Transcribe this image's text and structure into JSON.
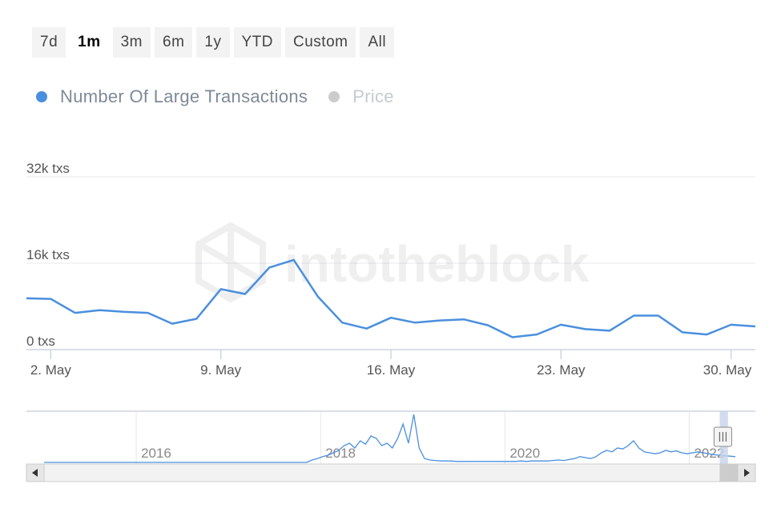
{
  "range_selector": {
    "buttons": [
      {
        "label": "7d",
        "active": false
      },
      {
        "label": "1m",
        "active": true
      },
      {
        "label": "3m",
        "active": false
      },
      {
        "label": "6m",
        "active": false
      },
      {
        "label": "1y",
        "active": false
      },
      {
        "label": "YTD",
        "active": false
      },
      {
        "label": "Custom",
        "active": false
      },
      {
        "label": "All",
        "active": false
      }
    ]
  },
  "legend": {
    "items": [
      {
        "label": "Number Of Large Transactions",
        "color": "#4a8fde",
        "text_color": "#7f8a97"
      },
      {
        "label": "Price",
        "color": "#cccccc",
        "text_color": "#c6cbd0"
      }
    ]
  },
  "watermark": "intotheblock",
  "colors": {
    "line": "#4a8fde",
    "grid": "#e9e9ef",
    "axis": "#cdd4e2"
  },
  "chart_data": {
    "type": "line",
    "series": [
      {
        "name": "Number Of Large Transactions",
        "x": [
          "2022-05-01",
          "2022-05-02",
          "2022-05-03",
          "2022-05-04",
          "2022-05-05",
          "2022-05-06",
          "2022-05-07",
          "2022-05-08",
          "2022-05-09",
          "2022-05-10",
          "2022-05-11",
          "2022-05-12",
          "2022-05-13",
          "2022-05-14",
          "2022-05-15",
          "2022-05-16",
          "2022-05-17",
          "2022-05-18",
          "2022-05-19",
          "2022-05-20",
          "2022-05-21",
          "2022-05-22",
          "2022-05-23",
          "2022-05-24",
          "2022-05-25",
          "2022-05-26",
          "2022-05-27",
          "2022-05-28",
          "2022-05-29",
          "2022-05-30",
          "2022-05-31"
        ],
        "values": [
          9500,
          9400,
          6800,
          7300,
          7000,
          6800,
          4800,
          5700,
          11200,
          10300,
          15200,
          16600,
          9800,
          5000,
          3900,
          5900,
          5000,
          5400,
          5600,
          4500,
          2300,
          2800,
          4600,
          3800,
          3500,
          6300,
          6300,
          3200,
          2800,
          4600,
          4300
        ]
      }
    ],
    "y_ticks": [
      {
        "value": 0,
        "label": "0 txs"
      },
      {
        "value": 16000,
        "label": "16k txs"
      },
      {
        "value": 32000,
        "label": "32k txs"
      }
    ],
    "ylim": [
      0,
      32000
    ],
    "x_ticks": [
      {
        "date": "2022-05-02",
        "label": "2. May"
      },
      {
        "date": "2022-05-09",
        "label": "9. May"
      },
      {
        "date": "2022-05-16",
        "label": "16. May"
      },
      {
        "date": "2022-05-23",
        "label": "23. May"
      },
      {
        "date": "2022-05-30",
        "label": "30. May"
      }
    ],
    "xlim": [
      "2022-05-01",
      "2022-05-31"
    ],
    "grid": true,
    "legend_position": "top-left",
    "navigator": {
      "labels": [
        "2016",
        "2018",
        "2020",
        "2022"
      ],
      "year_range": [
        2015,
        2022.5
      ],
      "selected_range": [
        2022.33,
        2022.42
      ],
      "values": [
        0,
        0,
        0,
        0,
        0,
        0,
        0,
        0,
        0,
        0,
        0,
        0,
        0,
        0,
        0,
        0,
        0,
        0,
        0,
        0,
        0,
        0,
        0,
        0,
        0,
        0,
        0,
        0,
        0,
        0,
        0,
        0,
        0,
        0,
        0,
        0,
        0,
        0,
        0,
        0,
        0,
        0,
        0,
        0,
        0,
        0,
        0,
        0,
        0,
        0,
        0.05,
        0.08,
        0.12,
        0.15,
        0.2,
        0.25,
        0.35,
        0.4,
        0.3,
        0.45,
        0.38,
        0.55,
        0.5,
        0.35,
        0.4,
        0.3,
        0.5,
        0.8,
        0.4,
        1.0,
        0.3,
        0.08,
        0.05,
        0.04,
        0.03,
        0.03,
        0.03,
        0.02,
        0.02,
        0.02,
        0.02,
        0.02,
        0.02,
        0.02,
        0.02,
        0.02,
        0.02,
        0.02,
        0.02,
        0.03,
        0.02,
        0.03,
        0.03,
        0.03,
        0.03,
        0.04,
        0.05,
        0.04,
        0.06,
        0.08,
        0.12,
        0.1,
        0.08,
        0.12,
        0.2,
        0.25,
        0.22,
        0.3,
        0.28,
        0.35,
        0.45,
        0.3,
        0.22,
        0.2,
        0.18,
        0.2,
        0.25,
        0.22,
        0.24,
        0.2,
        0.18,
        0.2,
        0.22,
        0.2,
        0.18,
        0.16,
        0.15,
        0.14,
        0.13,
        0.12
      ]
    }
  }
}
